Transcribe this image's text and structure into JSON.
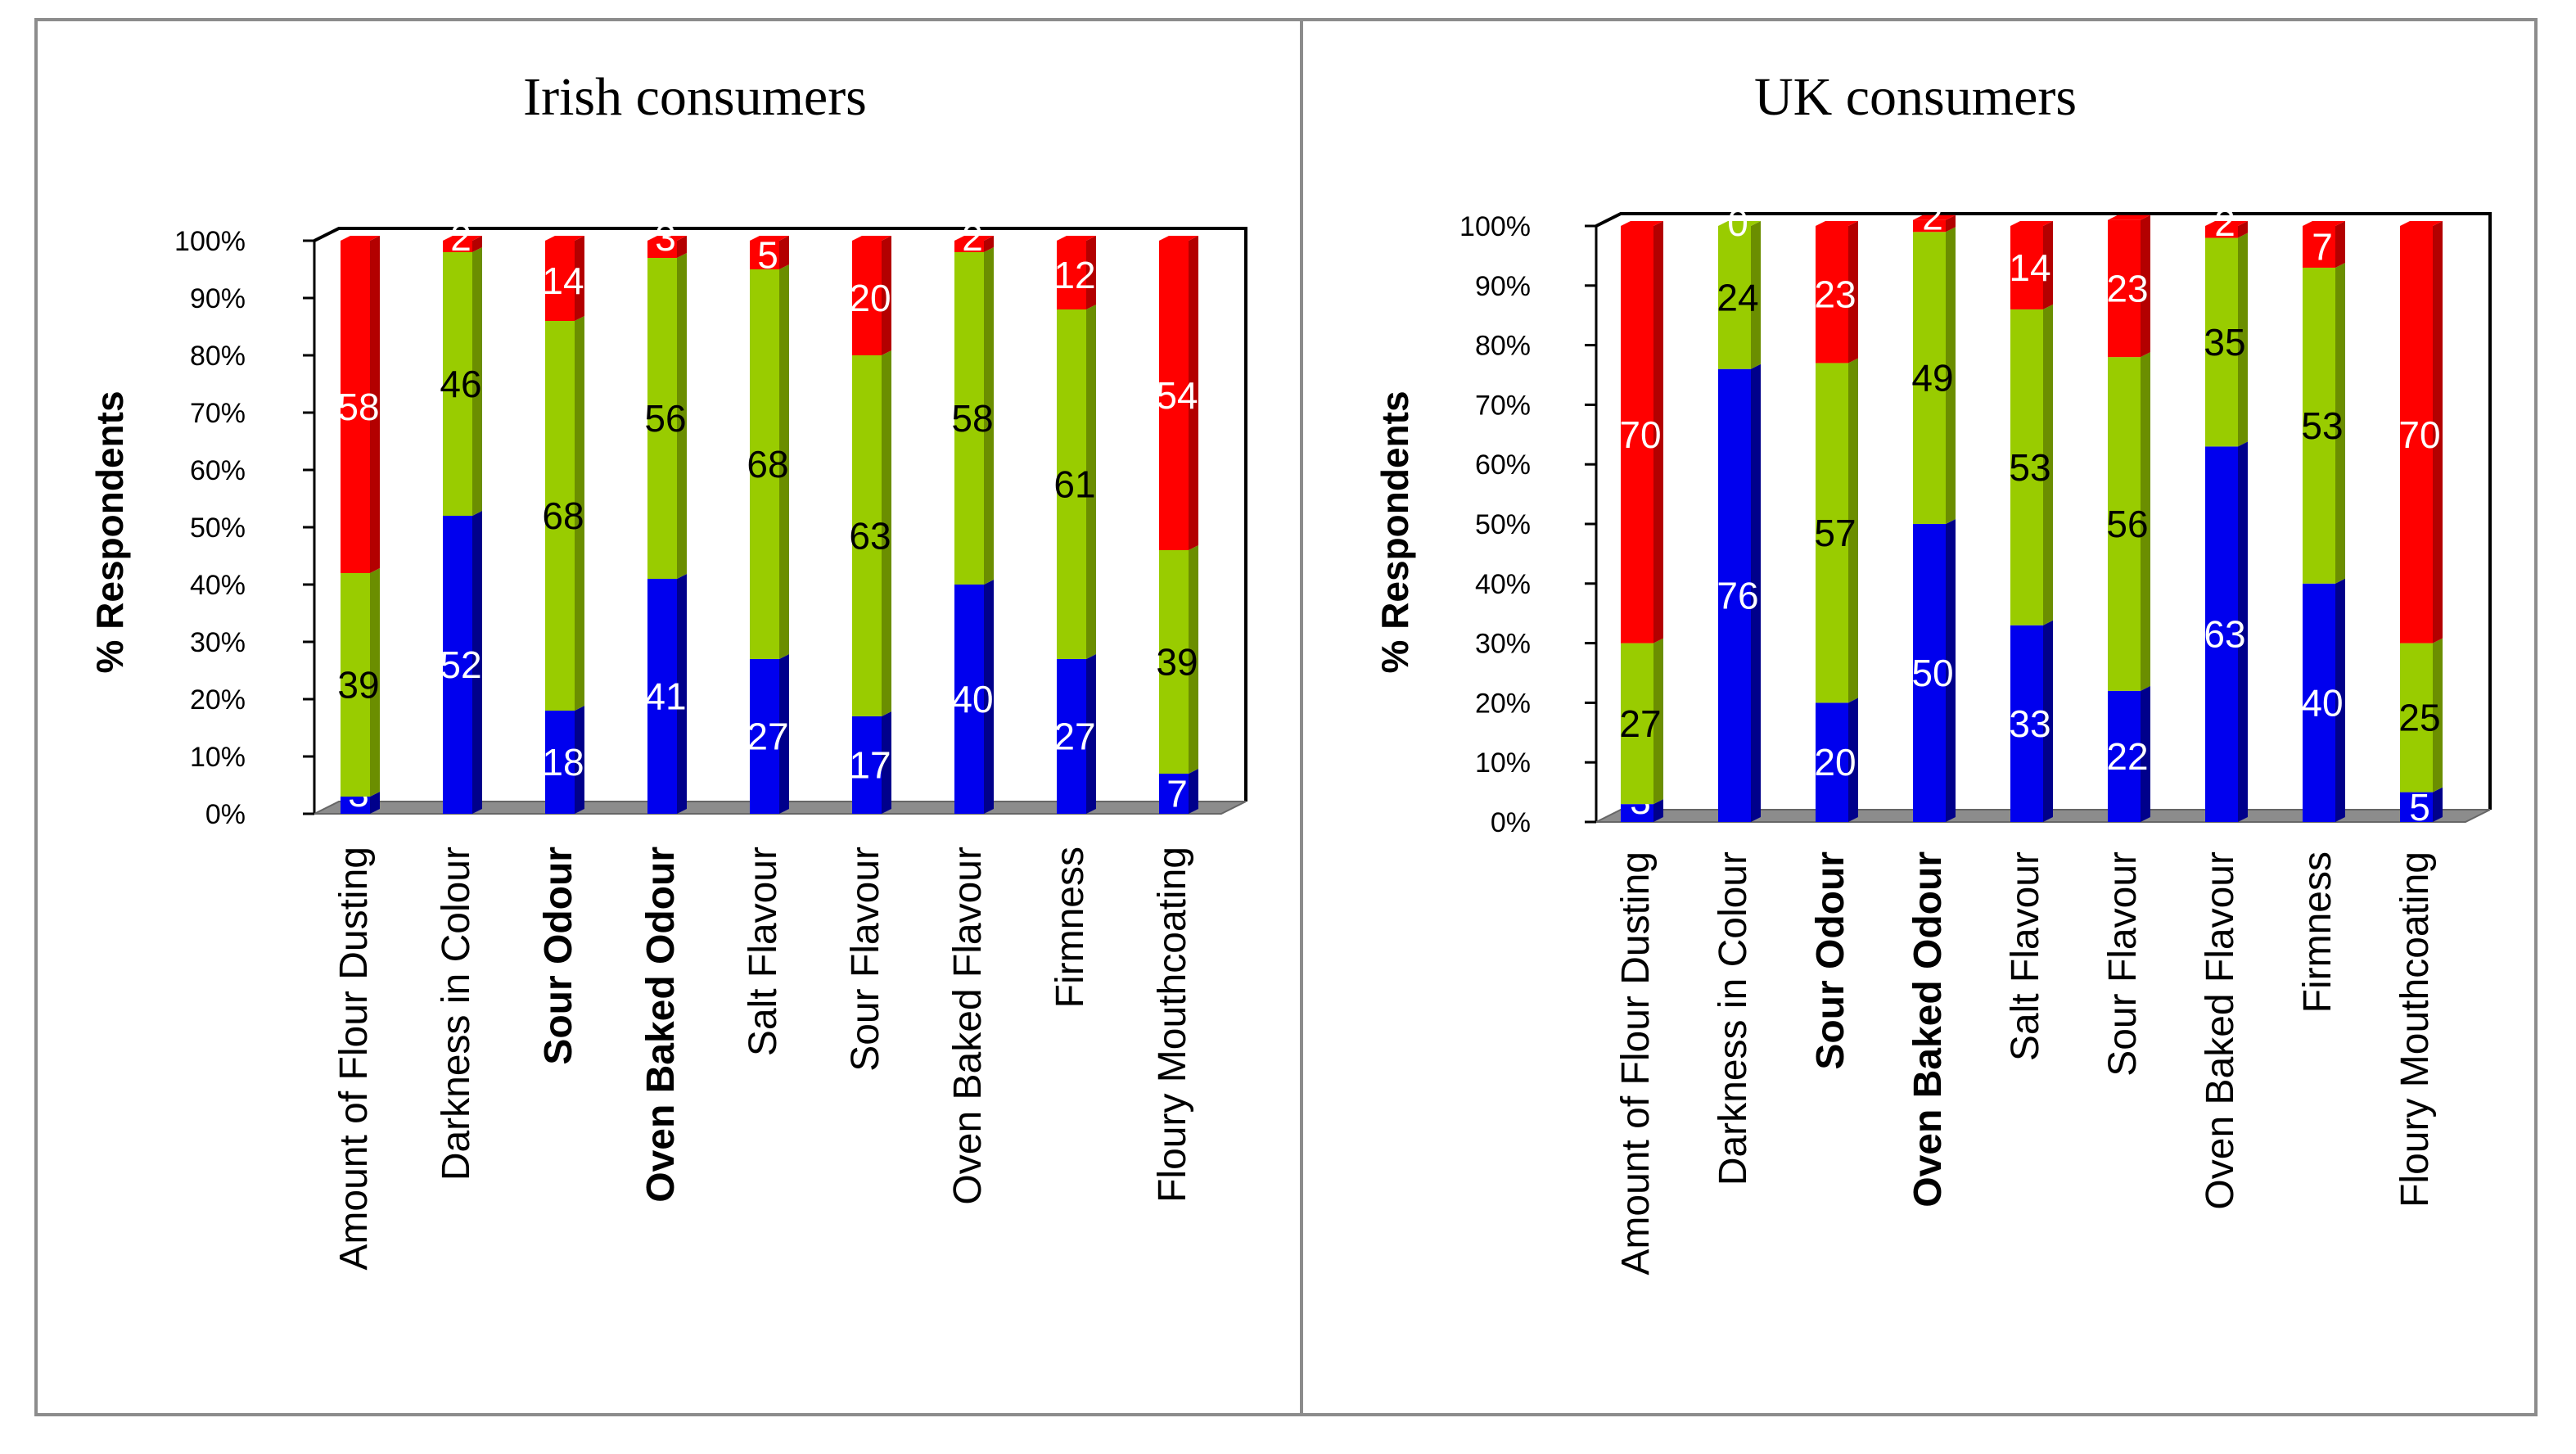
{
  "colors": {
    "no_change": "#0000ee",
    "no_change_side": "#00008b",
    "unchanged": "#99cc00",
    "unchanged_side": "#6b8e00",
    "increase": "#ff0000",
    "increase_side": "#b30000",
    "floor": "#8c8c8c",
    "frame": "#000000"
  },
  "chart_data": [
    {
      "type": "bar",
      "stacked": true,
      "title": "Irish consumers",
      "ylabel": "% Respondents",
      "xlabel": "",
      "ylim": [
        0,
        100
      ],
      "yticks": [
        "0%",
        "10%",
        "20%",
        "30%",
        "40%",
        "50%",
        "60%",
        "70%",
        "80%",
        "90%",
        "100%"
      ],
      "categories": [
        "Amount of Flour Dusting",
        "Darkness in Colour",
        "Sour Odour",
        "Oven Baked Odour",
        "Salt Flavour",
        "Sour Flavour",
        "Oven Baked Flavour",
        "Firmness",
        "Floury Mouthcoating"
      ],
      "bold_categories": [
        "Sour Odour",
        "Oven Baked Odour"
      ],
      "series": [
        {
          "name": "blue",
          "values": [
            3,
            52,
            18,
            41,
            27,
            17,
            40,
            27,
            7
          ]
        },
        {
          "name": "green",
          "values": [
            39,
            46,
            68,
            56,
            68,
            63,
            58,
            61,
            39
          ]
        },
        {
          "name": "red",
          "values": [
            58,
            2,
            14,
            3,
            5,
            20,
            2,
            12,
            54
          ]
        }
      ]
    },
    {
      "type": "bar",
      "stacked": true,
      "title": "UK consumers",
      "ylabel": "% Respondents",
      "xlabel": "",
      "ylim": [
        0,
        100
      ],
      "yticks": [
        "0%",
        "10%",
        "20%",
        "30%",
        "40%",
        "50%",
        "60%",
        "70%",
        "80%",
        "90%",
        "100%"
      ],
      "categories": [
        "Amount of Flour Dusting",
        "Darkness in Colour",
        "Sour Odour",
        "Oven Baked Odour",
        "Salt Flavour",
        "Sour Flavour",
        "Oven Baked Flavour",
        "Firmness",
        "Floury Mouthcoating"
      ],
      "bold_categories": [
        "Sour Odour",
        "Oven Baked Odour"
      ],
      "series": [
        {
          "name": "blue",
          "values": [
            3,
            76,
            20,
            50,
            33,
            22,
            63,
            40,
            5
          ]
        },
        {
          "name": "green",
          "values": [
            27,
            24,
            57,
            49,
            53,
            56,
            35,
            53,
            25
          ]
        },
        {
          "name": "red",
          "values": [
            70,
            0,
            23,
            2,
            14,
            23,
            2,
            7,
            70
          ]
        }
      ]
    }
  ]
}
